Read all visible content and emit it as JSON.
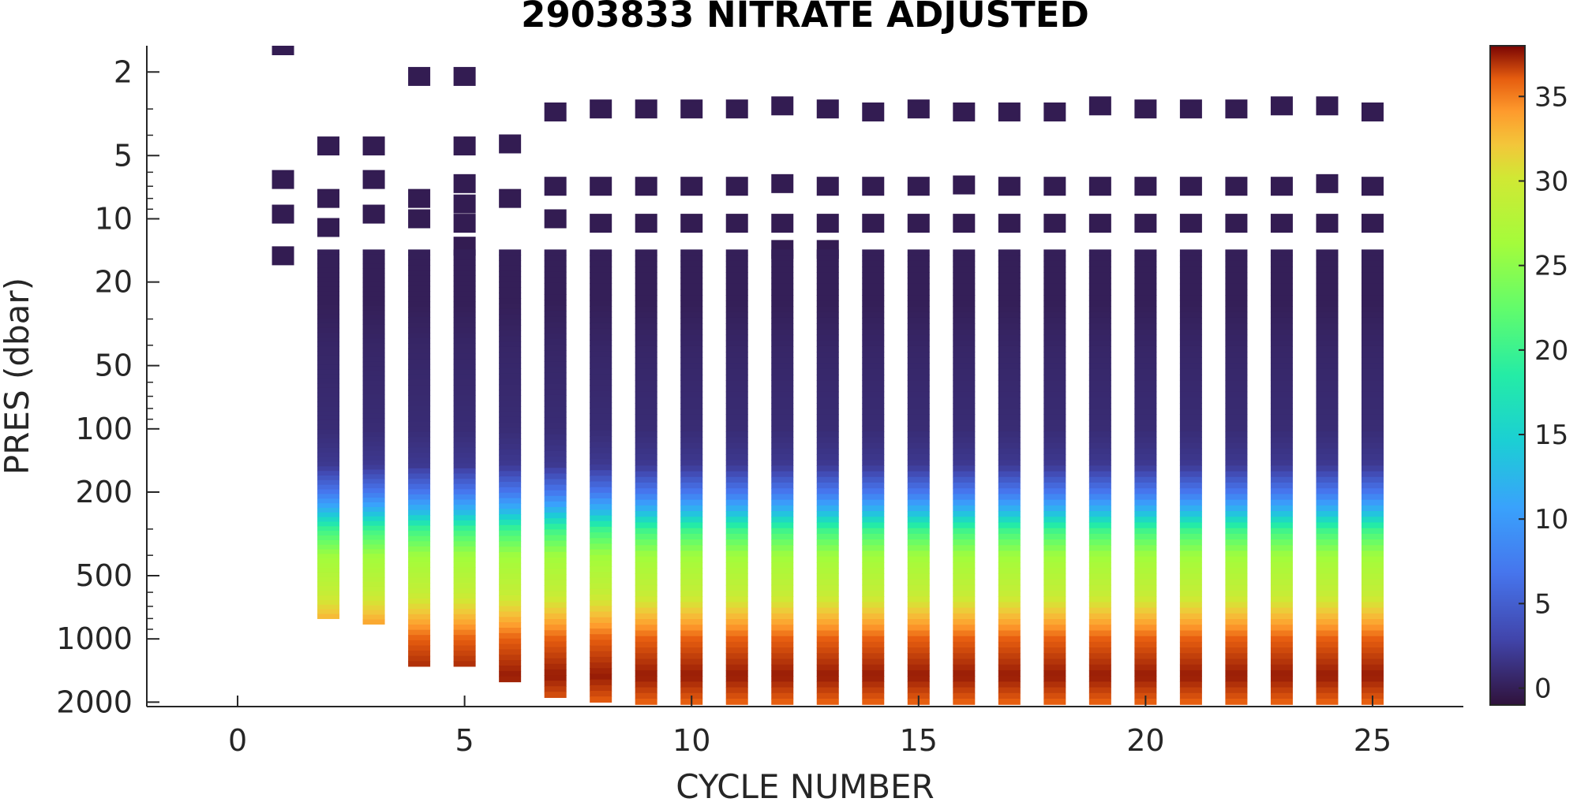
{
  "chart_data": {
    "type": "heatmap",
    "title": "2903833  NITRATE ADJUSTED",
    "xlabel": "CYCLE NUMBER",
    "ylabel": "PRES (dbar)",
    "xlim": [
      -2,
      27
    ],
    "ylim": [
      1.5,
      2100
    ],
    "y_scale": "log",
    "y_reversed": true,
    "x_ticks": [
      0,
      5,
      10,
      15,
      20,
      25
    ],
    "y_ticks": [
      2,
      5,
      10,
      20,
      50,
      100,
      200,
      500,
      1000,
      2000
    ],
    "colorbar": {
      "colormap": "turbo",
      "range": [
        -1,
        38
      ],
      "ticks": [
        0,
        5,
        10,
        15,
        20,
        25,
        30,
        35
      ]
    },
    "profile_shape": {
      "pressure": [
        15,
        25,
        40,
        100,
        150,
        200,
        250,
        300,
        400,
        600,
        800,
        1000,
        1500,
        2000
      ],
      "nitrate": [
        0,
        0,
        0.5,
        1,
        2,
        7,
        13,
        20,
        26,
        29,
        33,
        36,
        37.5,
        36
      ]
    },
    "cycles": [
      {
        "cycle": 1,
        "discrete": [
          1.5,
          6.5,
          9.5,
          15
        ],
        "max_pres": 15
      },
      {
        "cycle": 2,
        "discrete": [
          4.5,
          8,
          11
        ],
        "max_pres": 800
      },
      {
        "cycle": 3,
        "discrete": [
          4.5,
          6.5,
          9.5
        ],
        "max_pres": 850
      },
      {
        "cycle": 4,
        "discrete": [
          2.1,
          8,
          10
        ],
        "max_pres": 1350
      },
      {
        "cycle": 5,
        "discrete": [
          2.1,
          4.5,
          6.8,
          8.5,
          10.5,
          13.5
        ],
        "max_pres": 1350
      },
      {
        "cycle": 6,
        "discrete": [
          4.4,
          8
        ],
        "max_pres": 1600
      },
      {
        "cycle": 7,
        "discrete": [
          3.1,
          7,
          10
        ],
        "max_pres": 1900
      },
      {
        "cycle": 8,
        "discrete": [
          3,
          7,
          10.5
        ],
        "max_pres": 2000
      },
      {
        "cycle": 9,
        "discrete": [
          3,
          7,
          10.5
        ],
        "max_pres": 2050
      },
      {
        "cycle": 10,
        "discrete": [
          3,
          7,
          10.5
        ],
        "max_pres": 2050
      },
      {
        "cycle": 11,
        "discrete": [
          3,
          7,
          10.5
        ],
        "max_pres": 2050
      },
      {
        "cycle": 12,
        "discrete": [
          2.9,
          6.8,
          10.5,
          14
        ],
        "max_pres": 2050
      },
      {
        "cycle": 13,
        "discrete": [
          3,
          7,
          10.5,
          14
        ],
        "max_pres": 2050
      },
      {
        "cycle": 14,
        "discrete": [
          3.1,
          7,
          10.5
        ],
        "max_pres": 2050
      },
      {
        "cycle": 15,
        "discrete": [
          3,
          7,
          10.5
        ],
        "max_pres": 2050
      },
      {
        "cycle": 16,
        "discrete": [
          3.1,
          6.9,
          10.5
        ],
        "max_pres": 2050
      },
      {
        "cycle": 17,
        "discrete": [
          3.1,
          7,
          10.5
        ],
        "max_pres": 2050
      },
      {
        "cycle": 18,
        "discrete": [
          3.1,
          7,
          10.5
        ],
        "max_pres": 2050
      },
      {
        "cycle": 19,
        "discrete": [
          2.9,
          7,
          10.5
        ],
        "max_pres": 2050
      },
      {
        "cycle": 20,
        "discrete": [
          3,
          7,
          10.5
        ],
        "max_pres": 2050
      },
      {
        "cycle": 21,
        "discrete": [
          3,
          7,
          10.5
        ],
        "max_pres": 2050
      },
      {
        "cycle": 22,
        "discrete": [
          3,
          7,
          10.5
        ],
        "max_pres": 2050
      },
      {
        "cycle": 23,
        "discrete": [
          2.9,
          7,
          10.5
        ],
        "max_pres": 2050
      },
      {
        "cycle": 24,
        "discrete": [
          2.9,
          6.8,
          10.5
        ],
        "max_pres": 2050
      },
      {
        "cycle": 25,
        "discrete": [
          3.1,
          7,
          10.5
        ],
        "max_pres": 2050
      }
    ]
  }
}
